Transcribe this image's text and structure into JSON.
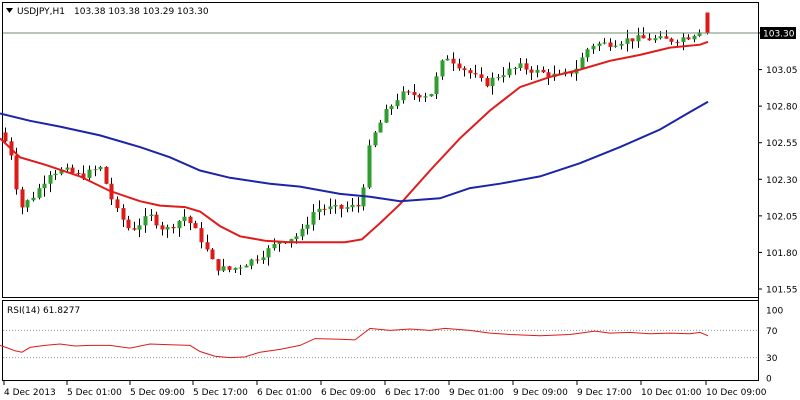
{
  "header": {
    "symbol_label": "USDJPY,H1",
    "ohlc_label": "103.38 103.38 103.29 103.30"
  },
  "colors": {
    "up_candle": "#2f9e2f",
    "down_candle": "#dd1a1a",
    "ma_fast": "#e01b1b",
    "ma_slow": "#1c24a8",
    "rsi_line": "#dd1a1a",
    "grid_dotted": "#9a9a9a",
    "price_line": "#6f8f6f"
  },
  "chart_data": [
    {
      "type": "candlestick",
      "title": "USDJPY,H1",
      "symbol": "USDJPY",
      "timeframe": "H1",
      "ohlc_current": {
        "open": 103.38,
        "high": 103.38,
        "low": 103.29,
        "close": 103.3
      },
      "current_price_label": "103.30",
      "y_ticks": [
        "103.30",
        "103.05",
        "102.80",
        "102.55",
        "102.30",
        "102.05",
        "101.80",
        "101.55"
      ],
      "ylim": [
        101.5,
        103.5
      ],
      "x_ticks": [
        "4 Dec 2013",
        "5 Dec 01:00",
        "5 Dec 09:00",
        "5 Dec 17:00",
        "6 Dec 01:00",
        "6 Dec 09:00",
        "6 Dec 17:00",
        "9 Dec 01:00",
        "9 Dec 09:00",
        "9 Dec 17:00",
        "10 Dec 01:00",
        "10 Dec 09:00"
      ],
      "overlays": [
        {
          "type": "moving_average",
          "color": "#e01b1b",
          "points": [
            [
              0,
              102.58
            ],
            [
              20,
              102.45
            ],
            [
              45,
              102.4
            ],
            [
              80,
              102.32
            ],
            [
              110,
              102.22
            ],
            [
              140,
              102.15
            ],
            [
              160,
              102.12
            ],
            [
              185,
              102.11
            ],
            [
              200,
              102.08
            ],
            [
              220,
              101.98
            ],
            [
              240,
              101.91
            ],
            [
              265,
              101.88
            ],
            [
              290,
              101.87
            ],
            [
              310,
              101.87
            ],
            [
              345,
              101.87
            ],
            [
              362,
              101.89
            ],
            [
              380,
              102.0
            ],
            [
              400,
              102.13
            ],
            [
              430,
              102.36
            ],
            [
              460,
              102.58
            ],
            [
              490,
              102.77
            ],
            [
              520,
              102.93
            ],
            [
              550,
              103.0
            ],
            [
              580,
              103.05
            ],
            [
              610,
              103.11
            ],
            [
              640,
              103.15
            ],
            [
              670,
              103.2
            ],
            [
              700,
              103.22
            ],
            [
              708,
              103.24
            ]
          ]
        },
        {
          "type": "moving_average",
          "color": "#1c24a8",
          "points": [
            [
              0,
              102.75
            ],
            [
              30,
              102.7
            ],
            [
              60,
              102.66
            ],
            [
              100,
              102.6
            ],
            [
              140,
              102.52
            ],
            [
              170,
              102.45
            ],
            [
              200,
              102.36
            ],
            [
              230,
              102.31
            ],
            [
              270,
              102.27
            ],
            [
              300,
              102.25
            ],
            [
              340,
              102.2
            ],
            [
              370,
              102.18
            ],
            [
              400,
              102.15
            ],
            [
              440,
              102.17
            ],
            [
              470,
              102.24
            ],
            [
              500,
              102.27
            ],
            [
              540,
              102.32
            ],
            [
              580,
              102.41
            ],
            [
              620,
              102.52
            ],
            [
              660,
              102.64
            ],
            [
              690,
              102.76
            ],
            [
              708,
              102.83
            ]
          ]
        }
      ]
    },
    {
      "type": "line",
      "title": "RSI(14) 61.8277",
      "y_ticks": [
        "100",
        "70",
        "30",
        "0"
      ],
      "levels": [
        70,
        30
      ],
      "ylim": [
        0,
        100
      ],
      "points": [
        [
          0,
          48
        ],
        [
          8,
          44
        ],
        [
          15,
          40
        ],
        [
          22,
          38
        ],
        [
          30,
          45
        ],
        [
          45,
          48
        ],
        [
          60,
          50
        ],
        [
          75,
          47
        ],
        [
          90,
          48
        ],
        [
          110,
          48
        ],
        [
          130,
          44
        ],
        [
          150,
          50
        ],
        [
          170,
          49
        ],
        [
          190,
          48
        ],
        [
          200,
          39
        ],
        [
          215,
          32
        ],
        [
          230,
          30
        ],
        [
          245,
          31
        ],
        [
          260,
          38
        ],
        [
          280,
          42
        ],
        [
          300,
          48
        ],
        [
          315,
          58
        ],
        [
          340,
          57
        ],
        [
          355,
          56
        ],
        [
          370,
          73
        ],
        [
          390,
          70
        ],
        [
          410,
          72
        ],
        [
          430,
          70
        ],
        [
          445,
          73
        ],
        [
          470,
          70
        ],
        [
          490,
          66
        ],
        [
          510,
          64
        ],
        [
          540,
          62
        ],
        [
          570,
          64
        ],
        [
          595,
          69
        ],
        [
          610,
          66
        ],
        [
          630,
          67
        ],
        [
          650,
          65
        ],
        [
          670,
          66
        ],
        [
          690,
          65
        ],
        [
          700,
          67
        ],
        [
          708,
          62
        ]
      ]
    }
  ]
}
